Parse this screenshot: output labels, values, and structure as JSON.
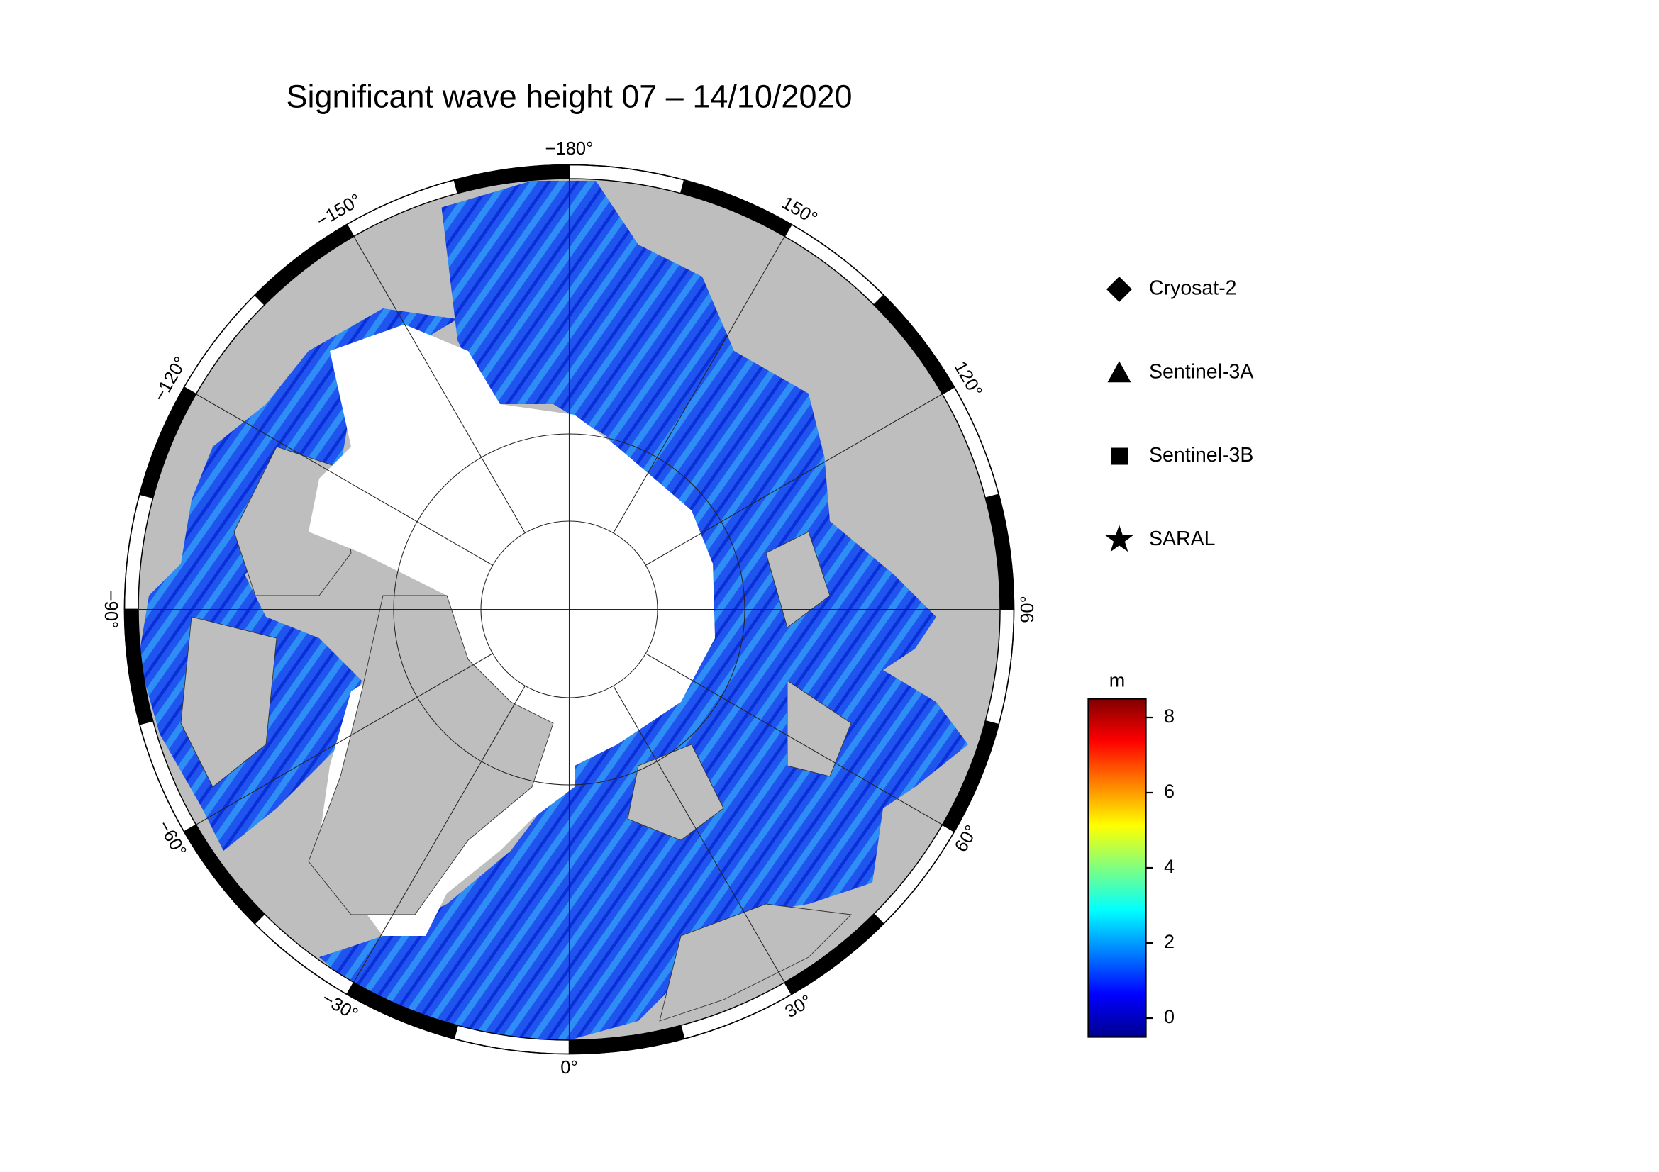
{
  "title": "Significant wave height 07 – 14/10/2020",
  "map": {
    "longitude_ticks": [
      {
        "value": -180,
        "label": "−180°"
      },
      {
        "value": 150,
        "label": "150°"
      },
      {
        "value": 120,
        "label": "120°"
      },
      {
        "value": 90,
        "label": "90°"
      },
      {
        "value": 60,
        "label": "60°"
      },
      {
        "value": 30,
        "label": "30°"
      },
      {
        "value": 0,
        "label": "0°"
      },
      {
        "value": -30,
        "label": "−30°"
      },
      {
        "value": -60,
        "label": "−60°"
      },
      {
        "value": -90,
        "label": "−90°"
      },
      {
        "value": -120,
        "label": "−120°"
      },
      {
        "value": -150,
        "label": "−150°"
      }
    ]
  },
  "legend": {
    "items": [
      {
        "label": "Cryosat-2",
        "marker": "diamond"
      },
      {
        "label": "Sentinel-3A",
        "marker": "triangle"
      },
      {
        "label": "Sentinel-3B",
        "marker": "square"
      },
      {
        "label": "SARAL",
        "marker": "star"
      }
    ]
  },
  "colorbar": {
    "unit": "m",
    "clim": [
      -0.5,
      8.5
    ],
    "ticks": [
      0,
      2,
      4,
      6,
      8
    ],
    "colors": [
      "#00008f",
      "#0000ff",
      "#0080ff",
      "#00ffff",
      "#80ff80",
      "#ffff00",
      "#ff8000",
      "#ff0000",
      "#800000"
    ]
  }
}
